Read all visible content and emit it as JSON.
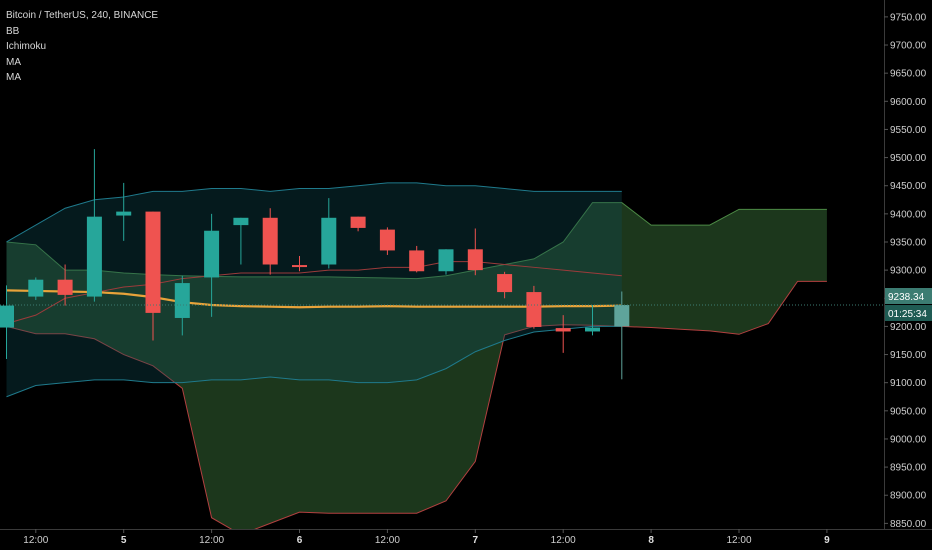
{
  "legend": {
    "symbol": "Bitcoin / TetherUS, 240, BINANCE",
    "indicators": [
      "BB",
      "Ichimoku",
      "MA",
      "MA"
    ]
  },
  "colors": {
    "background": "#000000",
    "up": "#26a69a",
    "down": "#ef5350",
    "ma": "#e8a33a",
    "bb_fill": "#08231f",
    "bb_line": "#1f7a8c",
    "cloud_green": "#1d3a1e",
    "cloud_red": "#3a1212",
    "price_label_bg": "#3c7c72",
    "time_label_bg": "#1f5b53"
  },
  "chart_data": {
    "type": "candlestick",
    "ylim": [
      8840,
      9780
    ],
    "yticks": [
      8850,
      8900,
      8950,
      9000,
      9050,
      9100,
      9150,
      9200,
      9250,
      9300,
      9350,
      9400,
      9450,
      9500,
      9550,
      9600,
      9650,
      9700,
      9750
    ],
    "ytick_labels": [
      "8850.00",
      "8900.00",
      "8950.00",
      "9000.00",
      "9050.00",
      "9100.00",
      "9150.00",
      "9200.00",
      "9250.00",
      "9300.00",
      "9350.00",
      "9400.00",
      "9450.00",
      "9500.00",
      "9550.00",
      "9600.00",
      "9650.00",
      "9700.00",
      "9750.00"
    ],
    "xlabels": [
      {
        "bar": 1,
        "label": "12:00",
        "bold": false
      },
      {
        "bar": 4,
        "label": "5",
        "bold": true
      },
      {
        "bar": 7,
        "label": "12:00",
        "bold": false
      },
      {
        "bar": 10,
        "label": "6",
        "bold": true
      },
      {
        "bar": 13,
        "label": "12:00",
        "bold": false
      },
      {
        "bar": 16,
        "label": "7",
        "bold": true
      },
      {
        "bar": 19,
        "label": "12:00",
        "bold": false
      },
      {
        "bar": 22,
        "label": "8",
        "bold": true
      },
      {
        "bar": 25,
        "label": "12:00",
        "bold": false
      },
      {
        "bar": 28,
        "label": "9",
        "bold": true
      }
    ],
    "candles": [
      {
        "o": 9198,
        "h": 9273,
        "l": 9142,
        "c": 9237
      },
      {
        "o": 9253,
        "h": 9287,
        "l": 9247,
        "c": 9283
      },
      {
        "o": 9283,
        "h": 9310,
        "l": 9237,
        "c": 9256
      },
      {
        "o": 9253,
        "h": 9515,
        "l": 9244,
        "c": 9395
      },
      {
        "o": 9397,
        "h": 9455,
        "l": 9352,
        "c": 9404
      },
      {
        "o": 9404,
        "h": 9404,
        "l": 9175,
        "c": 9224
      },
      {
        "o": 9215,
        "h": 9290,
        "l": 9184,
        "c": 9277
      },
      {
        "o": 9287,
        "h": 9400,
        "l": 9217,
        "c": 9370
      },
      {
        "o": 9380,
        "h": 9393,
        "l": 9310,
        "c": 9393
      },
      {
        "o": 9393,
        "h": 9410,
        "l": 9292,
        "c": 9310
      },
      {
        "o": 9309,
        "h": 9325,
        "l": 9298,
        "c": 9306
      },
      {
        "o": 9310,
        "h": 9428,
        "l": 9303,
        "c": 9393
      },
      {
        "o": 9395,
        "h": 9395,
        "l": 9369,
        "c": 9375
      },
      {
        "o": 9372,
        "h": 9376,
        "l": 9327,
        "c": 9335
      },
      {
        "o": 9335,
        "h": 9343,
        "l": 9296,
        "c": 9298
      },
      {
        "o": 9298,
        "h": 9337,
        "l": 9292,
        "c": 9337
      },
      {
        "o": 9337,
        "h": 9374,
        "l": 9291,
        "c": 9300
      },
      {
        "o": 9293,
        "h": 9297,
        "l": 9250,
        "c": 9261
      },
      {
        "o": 9261,
        "h": 9272,
        "l": 9196,
        "c": 9199
      },
      {
        "o": 9197,
        "h": 9220,
        "l": 9153,
        "c": 9191
      },
      {
        "o": 9191,
        "h": 9238,
        "l": 9184,
        "c": 9198
      },
      {
        "o": 9200,
        "h": 9262,
        "l": 9106,
        "c": 9238
      }
    ],
    "ma": [
      9264,
      9263,
      9262,
      9261,
      9258,
      9252,
      9243,
      9238,
      9236,
      9235,
      9234,
      9235,
      9235,
      9236,
      9235,
      9235,
      9235,
      9235,
      9235,
      9236,
      9236,
      9237
    ],
    "bb_upper": [
      9350,
      9380,
      9410,
      9425,
      9430,
      9440,
      9440,
      9445,
      9445,
      9440,
      9445,
      9445,
      9450,
      9455,
      9455,
      9450,
      9450,
      9445,
      9440,
      9440,
      9440,
      9440
    ],
    "bb_basis": [
      9205,
      9220,
      9250,
      9260,
      9270,
      9275,
      9285,
      9290,
      9295,
      9295,
      9295,
      9300,
      9300,
      9305,
      9305,
      9315,
      9315,
      9310,
      9305,
      9300,
      9295,
      9290
    ],
    "bb_lower": [
      9075,
      9095,
      9100,
      9105,
      9105,
      9100,
      9100,
      9105,
      9105,
      9110,
      9105,
      9105,
      9100,
      9100,
      9105,
      9125,
      9155,
      9175,
      9190,
      9195,
      9200,
      9200
    ],
    "ichimoku_span_a": [
      9350,
      9345,
      9300,
      9300,
      9295,
      9292,
      9290,
      9289,
      9288,
      9288,
      9288,
      9288,
      9287,
      9286,
      9285,
      9290,
      9300,
      9310,
      9320,
      9350,
      9420,
      9420,
      9380,
      9380,
      9380,
      9408,
      9408,
      9408,
      9408
    ],
    "ichimoku_span_b": [
      9200,
      9187,
      9187,
      9178,
      9150,
      9130,
      9090,
      8860,
      8830,
      8850,
      8870,
      8868,
      8868,
      8868,
      8868,
      8890,
      8960,
      9185,
      9200,
      9203,
      9202,
      9200,
      9198,
      9195,
      9192,
      9186,
      9205,
      9280,
      9280
    ]
  }
}
